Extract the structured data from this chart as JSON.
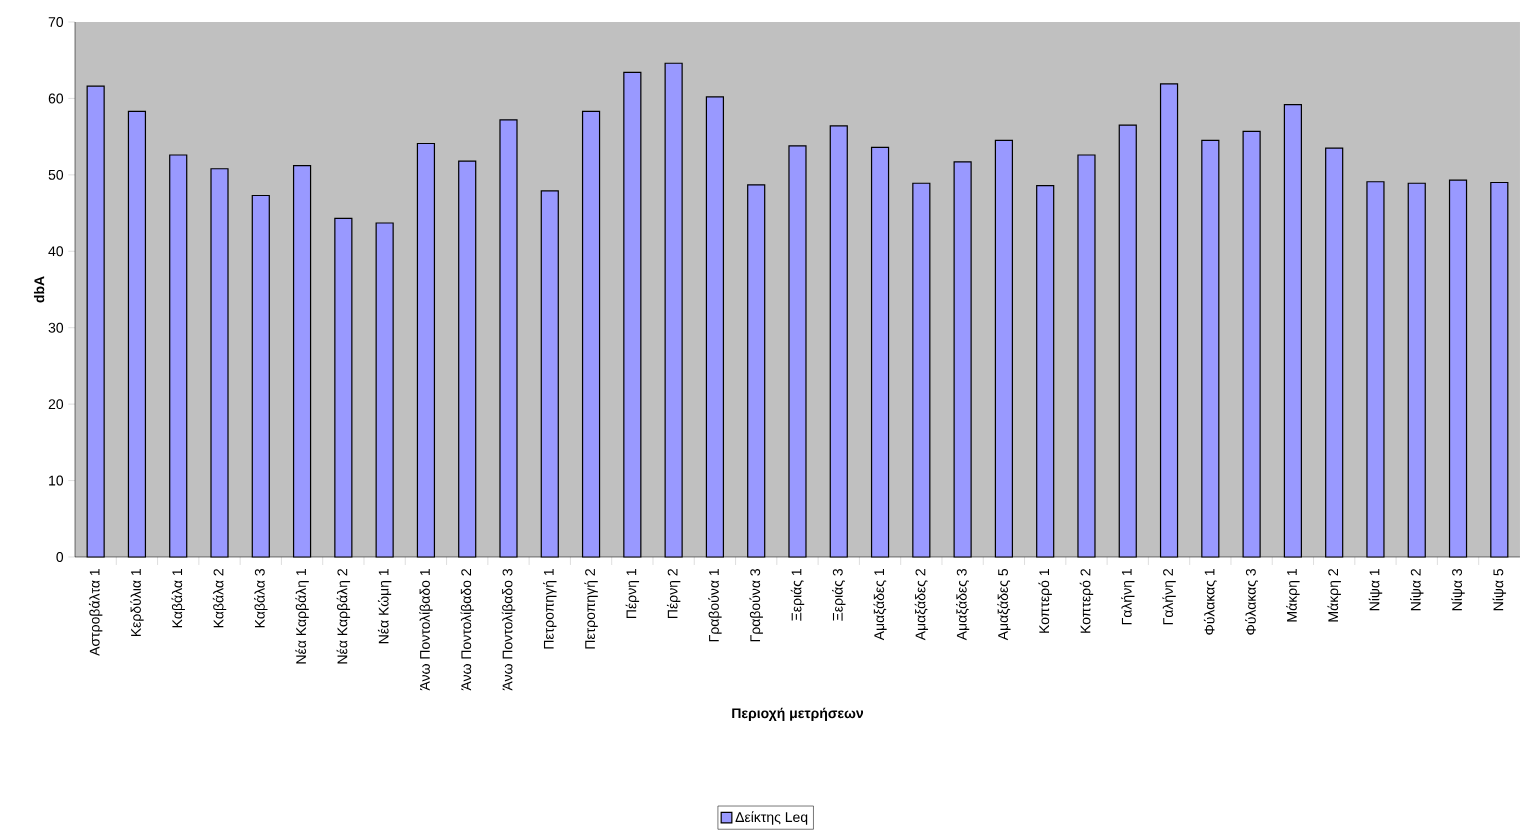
{
  "chart_data": {
    "type": "bar",
    "xlabel": "Περιοχή μετρήσεων",
    "ylabel": "dbA",
    "categories": [
      "Αστροβάλτα 1",
      "Κερδύλια 1",
      "Καβάλα 1",
      "Καβάλα 2",
      "Καβάλα 3",
      "Νέα Καρβάλη 1",
      "Νέα Καρβάλη 2",
      "Νέα Κώμη 1",
      "Άνω Ποντολίβαδο 1",
      "Άνω Ποντολίβαδο 2",
      "Άνω Ποντολίβαδο 3",
      "Πετροπηγή 1",
      "Πετροπηγή 2",
      "Πέρνη 1",
      "Πέρνη 2",
      "Γραβούνα 1",
      "Γραβούνα 3",
      "Ξεριάς 1",
      "Ξεριάς 3",
      "Αμαξάδες 1",
      "Αμαξάδες 2",
      "Αμαξάδες 3",
      "Αμαξάδες 5",
      "Κοπτερό 1",
      "Κοπτερό 2",
      "Γαλήνη 1",
      "Γαλήνη 2",
      "Φύλακας 1",
      "Φύλακας 3",
      "Μάκρη 1",
      "Μάκρη 2",
      "Νίψα 1",
      "Νίψα 2",
      "Νίψα 3",
      "Νίψα 5"
    ],
    "series": [
      {
        "name": "Δείκτης Leq",
        "color": "#9999ff",
        "values": [
          61.6,
          58.3,
          52.6,
          50.8,
          47.3,
          51.2,
          44.3,
          43.7,
          54.1,
          51.8,
          57.2,
          47.9,
          58.3,
          63.4,
          64.6,
          60.2,
          48.7,
          53.8,
          56.4,
          53.6,
          48.9,
          51.7,
          54.5,
          48.6,
          52.6,
          56.5,
          61.9,
          54.5,
          55.7,
          59.2,
          53.5,
          49.1,
          48.9,
          49.3,
          49.0
        ]
      }
    ],
    "ylim": [
      0,
      70
    ],
    "yticks": [
      0,
      10,
      20,
      30,
      40,
      50,
      60,
      70
    ],
    "grid": false,
    "legend": "bottom"
  }
}
